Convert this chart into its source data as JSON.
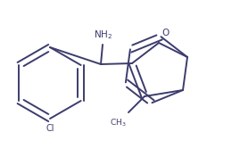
{
  "background_color": "#ffffff",
  "line_color": "#3c3c6e",
  "line_width": 1.4,
  "figsize": [
    2.69,
    1.76
  ],
  "dpi": 100,
  "xlim": [
    0,
    269
  ],
  "ylim": [
    0,
    176
  ]
}
